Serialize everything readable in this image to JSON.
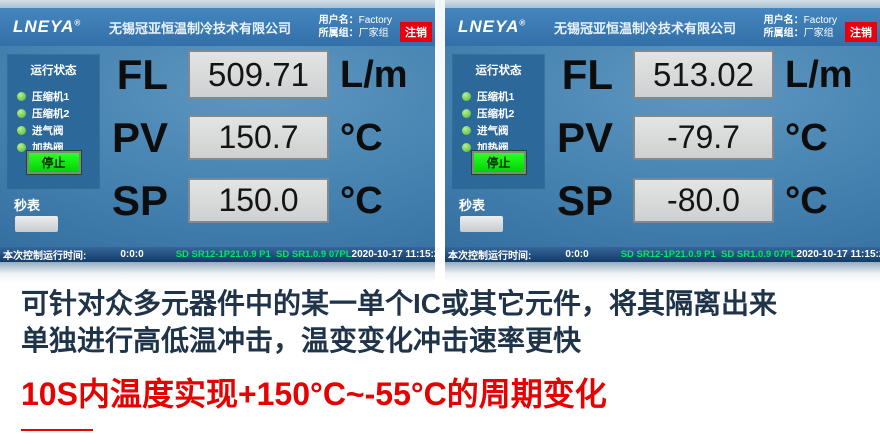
{
  "colors": {
    "header_blue": "#3a7ab6",
    "screen_blue": "#4783b1",
    "sidebar_blue": "#2d689b",
    "statusbar_navy": "#123c66",
    "logout_red": "#e8000f",
    "stop_green": "#00d400",
    "indicator_green": "#6cc84e",
    "firmware_green": "#00e862",
    "value_box_gray": "#d8d9da",
    "caption_navy": "#203449",
    "heading_red": "#e60000"
  },
  "panels": [
    {
      "header": {
        "logo": "LNEYA",
        "logo_reg": "®",
        "company": "无锡冠亚恒温制冷技术有限公司",
        "user_label": "用户名：",
        "user_value": "Factory",
        "group_label": "所属组：",
        "group_value": "厂家组",
        "logout": "注销"
      },
      "sidebar": {
        "title": "运行状态",
        "indicators": [
          "压缩机1",
          "压缩机2",
          "进气阀",
          "加热阀"
        ],
        "stop_label": "停止"
      },
      "stopwatch_label": "秒表",
      "readings": [
        {
          "label": "FL",
          "value": "509.71",
          "unit": "L/m"
        },
        {
          "label": "PV",
          "value": "150.7",
          "unit": "°C"
        },
        {
          "label": "SP",
          "value": "150.0",
          "unit": "°C"
        }
      ],
      "statusbar": {
        "runtime_label": "本次控制运行时间:",
        "runtime_value": "0:0:0",
        "firmware": "SD SR12-1P21.0.9 P1  SD SR1.0.9 07PL",
        "datetime": "2020-10-17 11:15:20"
      }
    },
    {
      "header": {
        "logo": "LNEYA",
        "logo_reg": "®",
        "company": "无锡冠亚恒温制冷技术有限公司",
        "user_label": "用户名：",
        "user_value": "Factory",
        "group_label": "所属组：",
        "group_value": "厂家组",
        "logout": "注销"
      },
      "sidebar": {
        "title": "运行状态",
        "indicators": [
          "压缩机1",
          "压缩机2",
          "进气阀",
          "加热阀"
        ],
        "stop_label": "停止"
      },
      "stopwatch_label": "秒表",
      "readings": [
        {
          "label": "FL",
          "value": "513.02",
          "unit": "L/m"
        },
        {
          "label": "PV",
          "value": "-79.7",
          "unit": "°C"
        },
        {
          "label": "SP",
          "value": "-80.0",
          "unit": "°C"
        }
      ],
      "statusbar": {
        "runtime_label": "本次控制运行时间:",
        "runtime_value": "0:0:0",
        "firmware": "SD SR12-1P21.0.9 P1  SD SR1.0.9 07PL",
        "datetime": "2020-10-17 11:15:20"
      }
    }
  ],
  "caption": {
    "line1": "可针对众多元器件中的某一单个IC或其它元件，将其隔离出来",
    "line2": "单独进行高低温冲击，温变变化冲击速率更快",
    "heading": "10S内温度实现+150°C~-55°C的周期变化"
  }
}
